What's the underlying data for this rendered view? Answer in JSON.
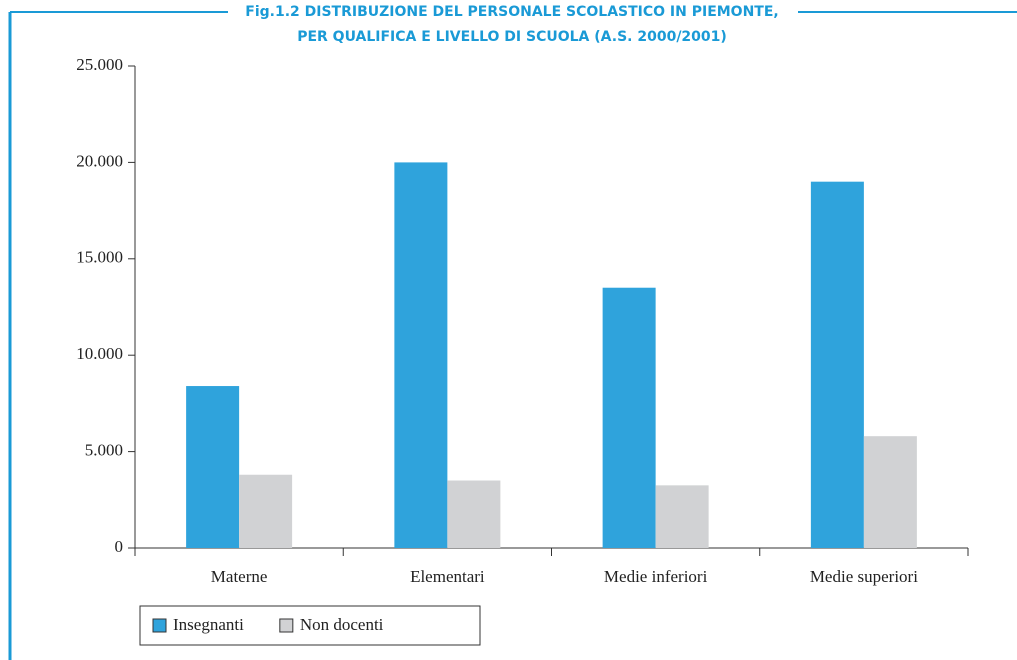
{
  "chart_data": {
    "type": "bar",
    "title": [
      "Fig.1.2 DISTRIBUZIONE DEL PERSONALE SCOLASTICO IN PIEMONTE,",
      "PER QUALIFICA E LIVELLO DI SCUOLA (A.S. 2000/2001)"
    ],
    "categories": [
      "Materne",
      "Elementari",
      "Medie inferiori",
      "Medie superiori"
    ],
    "series": [
      {
        "name": "Insegnanti",
        "color": "#2fa3dc",
        "values": [
          8400,
          20000,
          13500,
          19000
        ]
      },
      {
        "name": "Non docenti",
        "color": "#d1d2d4",
        "values": [
          3800,
          3500,
          3250,
          5800
        ]
      }
    ],
    "ylim": [
      0,
      25000
    ],
    "yticks": [
      0,
      {
        "value": 5000,
        "label": "5.000"
      },
      {
        "value": 10000,
        "label": "10.000"
      },
      {
        "value": 15000,
        "label": "15.000"
      },
      {
        "value": 20000,
        "label": "20.000"
      },
      {
        "value": 25000,
        "label": "25.000"
      }
    ],
    "legend": "bottom-left"
  }
}
